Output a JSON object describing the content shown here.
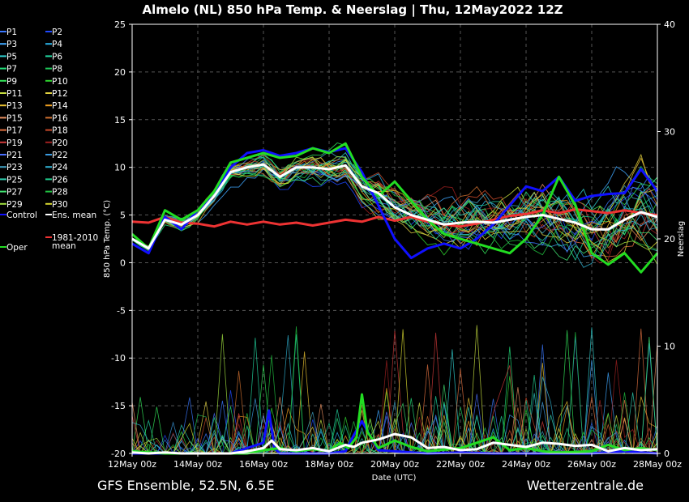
{
  "title": "Almelo  (NL)  850 hPa Temp. & Neerslag | Thu, 12May2022 12Z",
  "footer_left": "GFS Ensemble, 52.5N, 6.5E",
  "footer_right": "Wetterzentrale.de",
  "chart_data": {
    "type": "line",
    "xlabel": "Date (UTC)",
    "ylabel": "850 hPa Temp. (°C)",
    "y2label": "Neerslag",
    "x_ticks": [
      "12May 00z",
      "14May 00z",
      "16May 00z",
      "18May 00z",
      "20May 00z",
      "22May 00z",
      "24May 00z",
      "26May 00z",
      "28May 00z"
    ],
    "x_range_hours": [
      0,
      384
    ],
    "ylim": [
      -20,
      25
    ],
    "y_ticks": [
      25,
      20,
      15,
      10,
      5,
      0,
      -5,
      -10,
      -15,
      -20
    ],
    "y2lim": [
      0,
      40
    ],
    "y2_ticks": [
      40,
      30,
      20,
      10,
      0
    ],
    "grid": true,
    "legend_position": "left",
    "legend": [
      {
        "label": "P1",
        "color": "#3a78ff"
      },
      {
        "label": "P2",
        "color": "#1f49ff"
      },
      {
        "label": "P3",
        "color": "#3fa7ff"
      },
      {
        "label": "P4",
        "color": "#2ab3e8"
      },
      {
        "label": "P5",
        "color": "#2fd0d0"
      },
      {
        "label": "P6",
        "color": "#22d6a0"
      },
      {
        "label": "P7",
        "color": "#22e07a"
      },
      {
        "label": "P8",
        "color": "#1ec95a"
      },
      {
        "label": "P9",
        "color": "#33e65a"
      },
      {
        "label": "P10",
        "color": "#2fd62f"
      },
      {
        "label": "P11",
        "color": "#c8e040"
      },
      {
        "label": "P12",
        "color": "#e0d040"
      },
      {
        "label": "P13",
        "color": "#e8c030"
      },
      {
        "label": "P14",
        "color": "#f0a020"
      },
      {
        "label": "P15",
        "color": "#e89060"
      },
      {
        "label": "P16",
        "color": "#d07030"
      },
      {
        "label": "P17",
        "color": "#e07040"
      },
      {
        "label": "P18",
        "color": "#c84a2a"
      },
      {
        "label": "P19",
        "color": "#d03a3a"
      },
      {
        "label": "P20",
        "color": "#a02020"
      },
      {
        "label": "P21",
        "color": "#4a70ff"
      },
      {
        "label": "P22",
        "color": "#3b9be0"
      },
      {
        "label": "P23",
        "color": "#40a0c0"
      },
      {
        "label": "P24",
        "color": "#30b0d0"
      },
      {
        "label": "P25",
        "color": "#30d0b0"
      },
      {
        "label": "P26",
        "color": "#20d090"
      },
      {
        "label": "P27",
        "color": "#40e070"
      },
      {
        "label": "P28",
        "color": "#20c040"
      },
      {
        "label": "P29",
        "color": "#a0e040"
      },
      {
        "label": "P30",
        "color": "#d8d830"
      },
      {
        "label": "Control",
        "color": "#1010ff"
      },
      {
        "label": "Ens. mean",
        "color": "#ffffff"
      },
      {
        "label": "Oper",
        "color": "#22dd22"
      },
      {
        "label": "1981-2010 mean",
        "color": "#ee3333"
      }
    ],
    "series": [
      {
        "name": "Ens. mean",
        "role": "temp",
        "color": "#ffffff",
        "width": 3,
        "x": [
          0,
          12,
          24,
          36,
          48,
          60,
          72,
          84,
          96,
          108,
          120,
          132,
          144,
          156,
          168,
          180,
          192,
          204,
          216,
          228,
          240,
          252,
          264,
          276,
          288,
          300,
          312,
          324,
          336,
          348,
          360,
          372,
          384
        ],
        "y": [
          2.5,
          1.5,
          4.5,
          4,
          5,
          7,
          9.5,
          10,
          10.3,
          9,
          10,
          10,
          9.8,
          10.2,
          8,
          7.3,
          5.8,
          5,
          4.5,
          4,
          4.2,
          4.3,
          4.2,
          4.5,
          4.8,
          5,
          4.6,
          4.2,
          3.5,
          3.5,
          4.5,
          5.3,
          4.8
        ]
      },
      {
        "name": "Control",
        "role": "temp",
        "color": "#1010ff",
        "width": 3,
        "x": [
          0,
          12,
          24,
          36,
          48,
          60,
          72,
          84,
          96,
          108,
          120,
          132,
          144,
          156,
          168,
          180,
          192,
          204,
          216,
          228,
          240,
          252,
          264,
          276,
          288,
          300,
          312,
          324,
          336,
          348,
          360,
          372,
          384
        ],
        "y": [
          2,
          1,
          4.8,
          3.5,
          5.5,
          7,
          10,
          11.5,
          11.8,
          11.2,
          11.5,
          12,
          11.6,
          12,
          9.5,
          6,
          2.5,
          0.5,
          1.5,
          2,
          1.5,
          2.5,
          4,
          6,
          8,
          7.5,
          9,
          6.5,
          7,
          7.2,
          7.3,
          9.8,
          7.5
        ]
      },
      {
        "name": "Oper",
        "role": "temp",
        "color": "#22dd22",
        "width": 3,
        "x": [
          0,
          12,
          24,
          36,
          48,
          60,
          72,
          84,
          96,
          108,
          120,
          132,
          144,
          156,
          168,
          180,
          192,
          204,
          216,
          228,
          240,
          252,
          264,
          276,
          288,
          300,
          312,
          324,
          336,
          348,
          360,
          372,
          384
        ],
        "y": [
          3,
          1.5,
          5.5,
          4.5,
          5.5,
          7.5,
          10.5,
          11,
          11.5,
          11,
          11.2,
          12,
          11.5,
          12.5,
          9,
          7,
          8.5,
          6.5,
          4.5,
          3,
          2.5,
          2,
          1.5,
          1,
          2.5,
          5,
          9,
          6,
          1,
          -0.2,
          1,
          -1,
          1
        ]
      },
      {
        "name": "1981-2010 mean",
        "role": "temp",
        "color": "#ee3333",
        "width": 3,
        "x": [
          0,
          12,
          24,
          36,
          48,
          60,
          72,
          84,
          96,
          108,
          120,
          132,
          144,
          156,
          168,
          180,
          192,
          204,
          216,
          228,
          240,
          252,
          264,
          276,
          288,
          300,
          312,
          324,
          336,
          348,
          360,
          372,
          384
        ],
        "y": [
          4.3,
          4.2,
          4.8,
          4.2,
          4.1,
          3.8,
          4.3,
          4.0,
          4.3,
          4.0,
          4.2,
          3.9,
          4.2,
          4.5,
          4.3,
          4.8,
          4.4,
          4.8,
          4.3,
          4.0,
          3.8,
          4.1,
          4.5,
          4.9,
          5.1,
          5.5,
          5.2,
          5.6,
          5.4,
          5.2,
          5.5,
          5.2,
          5.0
        ]
      },
      {
        "name": "Ens. mean precip",
        "role": "precip",
        "color": "#ffffff",
        "width": 3,
        "x": [
          0,
          12,
          24,
          36,
          48,
          60,
          72,
          84,
          96,
          102,
          108,
          120,
          132,
          144,
          156,
          162,
          168,
          180,
          192,
          204,
          216,
          228,
          240,
          252,
          264,
          276,
          288,
          300,
          312,
          324,
          336,
          348,
          360,
          372,
          384
        ],
        "y": [
          0.1,
          0,
          0.1,
          0,
          0,
          0,
          0,
          0.2,
          0.5,
          1.2,
          0.4,
          0.3,
          0.5,
          0.2,
          0.8,
          0.6,
          1.0,
          1.3,
          1.8,
          1.5,
          0.5,
          0.6,
          0.3,
          0.4,
          1.0,
          0.8,
          0.6,
          1.0,
          0.9,
          0.7,
          0.8,
          0.2,
          0.5,
          0.3,
          0.4
        ]
      },
      {
        "name": "Control precip",
        "role": "precip",
        "color": "#1010ff",
        "width": 3,
        "x": [
          0,
          24,
          48,
          72,
          84,
          96,
          100,
          104,
          108,
          120,
          144,
          156,
          162,
          168,
          180,
          192,
          216,
          240,
          264,
          288,
          312,
          336,
          360,
          384
        ],
        "y": [
          0,
          0,
          0,
          0,
          0.5,
          1,
          4,
          0.5,
          0,
          0,
          0,
          0.2,
          1.7,
          3.0,
          0.3,
          0.2,
          0,
          0.1,
          0,
          0,
          0,
          0,
          0.2,
          0
        ]
      },
      {
        "name": "Oper precip",
        "role": "precip",
        "color": "#22dd22",
        "width": 3,
        "x": [
          0,
          24,
          48,
          72,
          84,
          96,
          108,
          120,
          132,
          144,
          152,
          158,
          164,
          168,
          172,
          180,
          192,
          204,
          216,
          240,
          252,
          264,
          276,
          288,
          300,
          312,
          336,
          348,
          360,
          372,
          384
        ],
        "y": [
          0.2,
          0,
          0,
          0,
          0,
          0.3,
          0.5,
          0.2,
          0.4,
          0.2,
          1.0,
          0.5,
          1.5,
          5.5,
          2.0,
          0.5,
          1.2,
          0.6,
          0.2,
          0.5,
          1.0,
          1.5,
          0.3,
          0.5,
          0.2,
          0.1,
          0.2,
          0.8,
          0.3,
          0.5,
          0.3
        ]
      }
    ]
  }
}
